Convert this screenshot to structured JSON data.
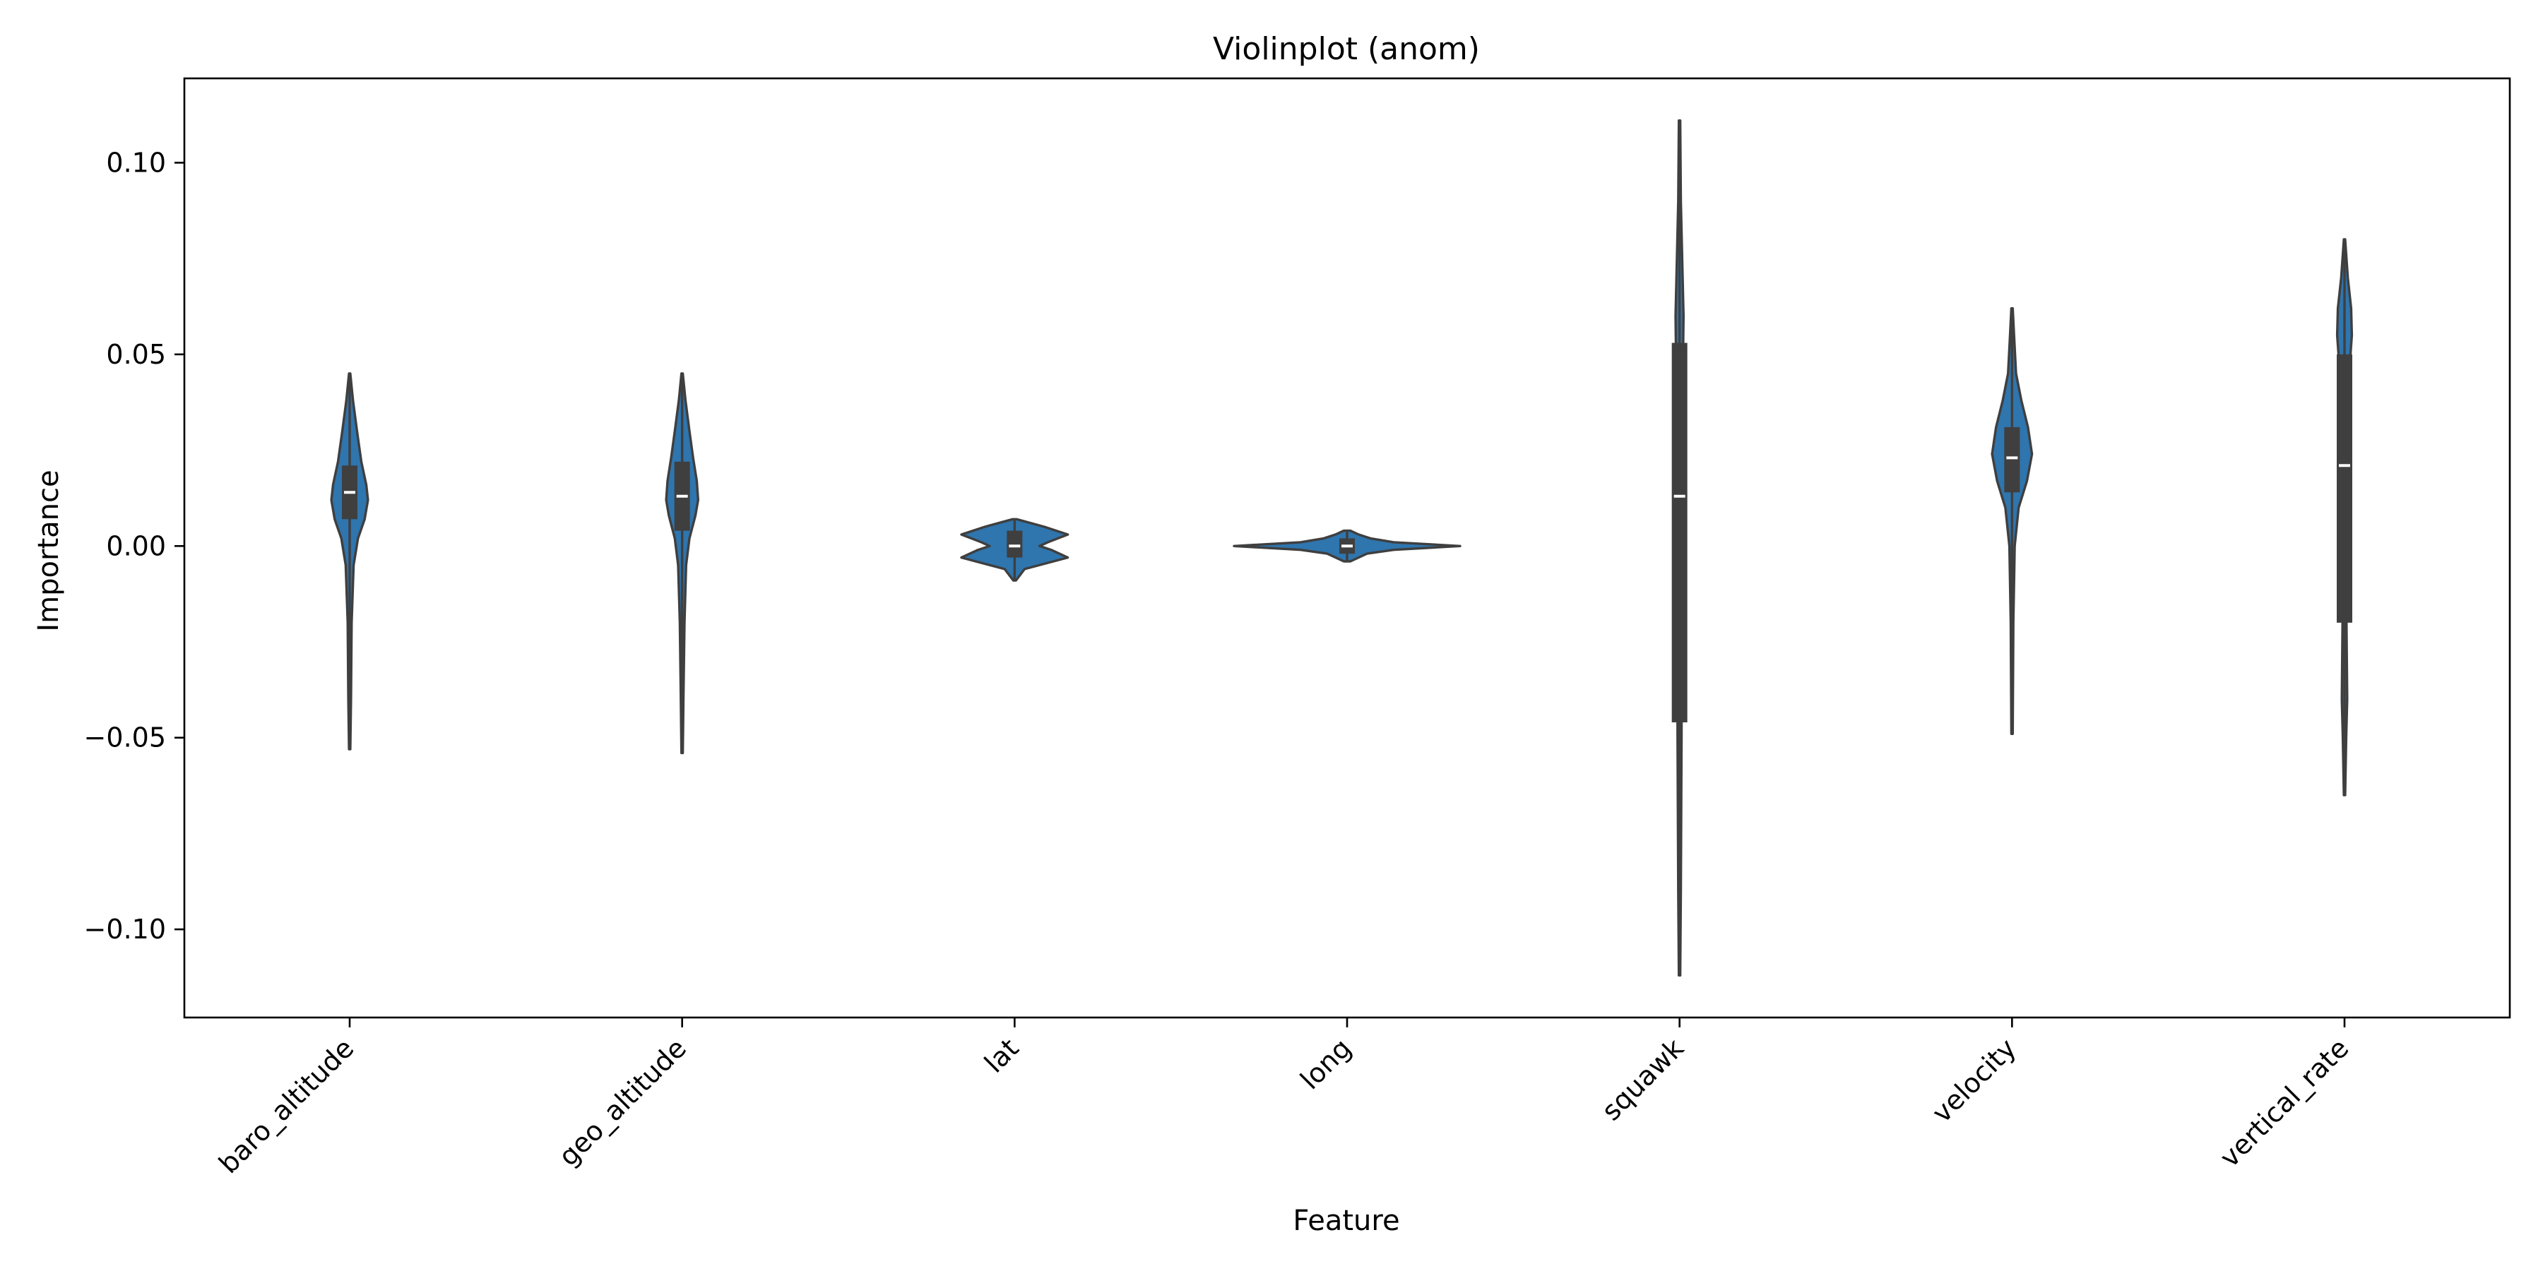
{
  "chart_data": {
    "type": "violin",
    "title": "Violinplot (anom)",
    "xlabel": "Feature",
    "ylabel": "Importance",
    "ylim": [
      -0.123,
      0.122
    ],
    "yticks": [
      -0.1,
      -0.05,
      0.0,
      0.05,
      0.1
    ],
    "ytick_labels": [
      "−0.10",
      "−0.05",
      "0.00",
      "0.05",
      "0.10"
    ],
    "categories": [
      "baro_altitude",
      "geo_altitude",
      "lat",
      "long",
      "squawk",
      "velocity",
      "vertical_rate"
    ],
    "grid": false,
    "legend": "none",
    "colors": {
      "fill": "#2f75ae",
      "edge": "#3f3f3f",
      "median": "#ffffff"
    },
    "violins": [
      {
        "category": "baro_altitude",
        "min": -0.053,
        "q1": 0.007,
        "median": 0.014,
        "q3": 0.021,
        "max": 0.045,
        "density": [
          [
            -0.053,
            0.002
          ],
          [
            -0.04,
            0.004
          ],
          [
            -0.02,
            0.006
          ],
          [
            -0.005,
            0.012
          ],
          [
            0.002,
            0.025
          ],
          [
            0.007,
            0.045
          ],
          [
            0.012,
            0.055
          ],
          [
            0.016,
            0.05
          ],
          [
            0.022,
            0.035
          ],
          [
            0.03,
            0.022
          ],
          [
            0.038,
            0.01
          ],
          [
            0.045,
            0.002
          ]
        ]
      },
      {
        "category": "geo_altitude",
        "min": -0.054,
        "q1": 0.004,
        "median": 0.013,
        "q3": 0.022,
        "max": 0.045,
        "density": [
          [
            -0.054,
            0.002
          ],
          [
            -0.04,
            0.004
          ],
          [
            -0.02,
            0.007
          ],
          [
            -0.005,
            0.012
          ],
          [
            0.002,
            0.022
          ],
          [
            0.008,
            0.04
          ],
          [
            0.012,
            0.048
          ],
          [
            0.017,
            0.044
          ],
          [
            0.023,
            0.033
          ],
          [
            0.03,
            0.022
          ],
          [
            0.038,
            0.01
          ],
          [
            0.045,
            0.002
          ]
        ]
      },
      {
        "category": "lat",
        "min": -0.009,
        "q1": -0.003,
        "median": 0.0,
        "q3": 0.004,
        "max": 0.007,
        "density": [
          [
            -0.009,
            0.004
          ],
          [
            -0.006,
            0.03
          ],
          [
            -0.003,
            0.16
          ],
          [
            -0.001,
            0.11
          ],
          [
            0.0,
            0.075
          ],
          [
            0.001,
            0.1
          ],
          [
            0.003,
            0.16
          ],
          [
            0.005,
            0.09
          ],
          [
            0.007,
            0.006
          ]
        ]
      },
      {
        "category": "long",
        "min": -0.004,
        "q1": -0.002,
        "median": 0.0,
        "q3": 0.002,
        "max": 0.004,
        "density": [
          [
            -0.004,
            0.01
          ],
          [
            -0.002,
            0.06
          ],
          [
            -0.001,
            0.14
          ],
          [
            0.0,
            0.34
          ],
          [
            0.001,
            0.14
          ],
          [
            0.002,
            0.07
          ],
          [
            0.003,
            0.035
          ],
          [
            0.004,
            0.01
          ]
        ]
      },
      {
        "category": "squawk",
        "min": -0.112,
        "q1": -0.046,
        "median": 0.013,
        "q3": 0.053,
        "max": 0.111,
        "density": [
          [
            -0.112,
            0.002
          ],
          [
            -0.09,
            0.004
          ],
          [
            -0.05,
            0.006
          ],
          [
            0.0,
            0.007
          ],
          [
            0.03,
            0.008
          ],
          [
            0.06,
            0.012
          ],
          [
            0.075,
            0.008
          ],
          [
            0.09,
            0.004
          ],
          [
            0.111,
            0.002
          ]
        ]
      },
      {
        "category": "velocity",
        "min": -0.049,
        "q1": 0.014,
        "median": 0.023,
        "q3": 0.031,
        "max": 0.062,
        "density": [
          [
            -0.049,
            0.002
          ],
          [
            -0.02,
            0.004
          ],
          [
            0.0,
            0.008
          ],
          [
            0.01,
            0.02
          ],
          [
            0.017,
            0.045
          ],
          [
            0.024,
            0.06
          ],
          [
            0.031,
            0.048
          ],
          [
            0.038,
            0.028
          ],
          [
            0.045,
            0.012
          ],
          [
            0.055,
            0.006
          ],
          [
            0.062,
            0.002
          ]
        ]
      },
      {
        "category": "vertical_rate",
        "min": -0.065,
        "q1": -0.02,
        "median": 0.021,
        "q3": 0.05,
        "max": 0.08,
        "density": [
          [
            -0.065,
            0.002
          ],
          [
            -0.05,
            0.005
          ],
          [
            -0.04,
            0.008
          ],
          [
            -0.02,
            0.006
          ],
          [
            0.0,
            0.008
          ],
          [
            0.02,
            0.01
          ],
          [
            0.045,
            0.014
          ],
          [
            0.055,
            0.022
          ],
          [
            0.062,
            0.02
          ],
          [
            0.07,
            0.01
          ],
          [
            0.08,
            0.002
          ]
        ]
      }
    ]
  }
}
